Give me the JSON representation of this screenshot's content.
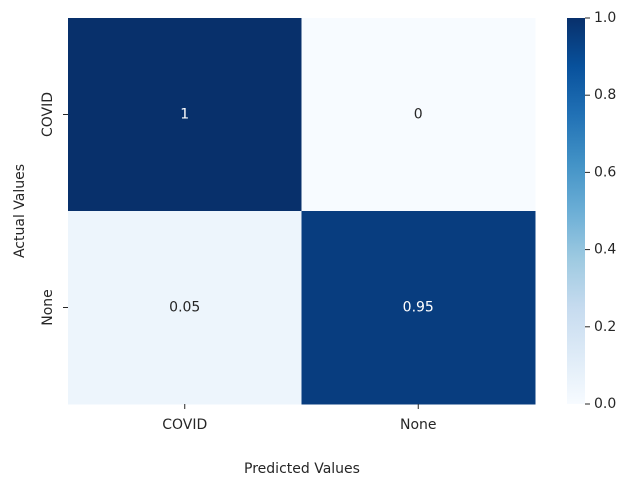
{
  "chart_data": {
    "type": "heatmap",
    "x_categories": [
      "COVID",
      "None"
    ],
    "y_categories": [
      "COVID",
      "None"
    ],
    "values": [
      [
        1,
        0
      ],
      [
        0.05,
        0.95
      ]
    ],
    "xlabel": "Predicted Values",
    "ylabel": "Actual Values",
    "colormap": "Blues",
    "zlim": [
      0,
      1
    ],
    "zticks": [
      {
        "value": 0,
        "label": "0.0"
      },
      0.2,
      0.4,
      0.6,
      0.8,
      {
        "value": 1,
        "label": "1.0"
      }
    ]
  }
}
